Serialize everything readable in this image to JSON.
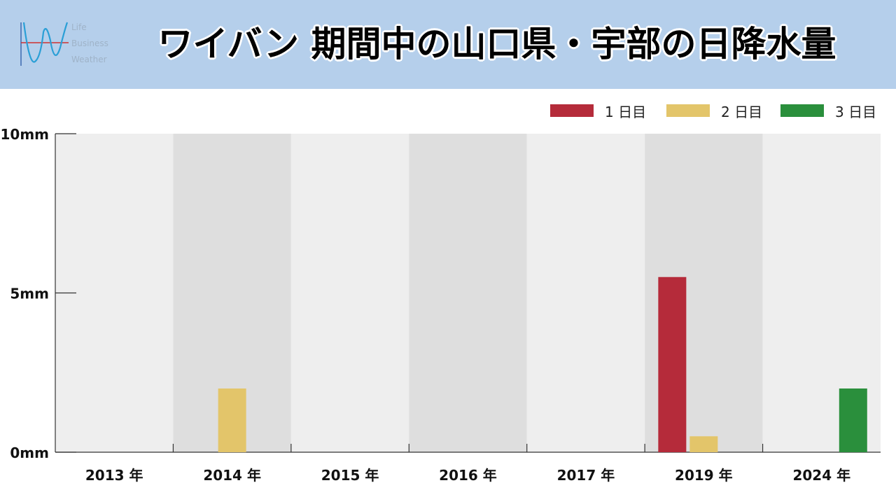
{
  "header": {
    "title": "ワイバン 期間中の山口県・宇部の日降水量",
    "logo_lines": [
      "Life",
      "Business",
      "Weather"
    ],
    "background_color": "#b5cfeb"
  },
  "chart_data": {
    "type": "bar",
    "categories": [
      "2013 年",
      "2014 年",
      "2015 年",
      "2016 年",
      "2017 年",
      "2019 年",
      "2024 年"
    ],
    "series": [
      {
        "name": "1 日目",
        "color": "#b52b3a",
        "values": [
          0,
          0,
          0,
          0,
          0,
          5.5,
          0
        ]
      },
      {
        "name": "2 日目",
        "color": "#e3c56a",
        "values": [
          0,
          2.0,
          0,
          0,
          0,
          0.5,
          0
        ]
      },
      {
        "name": "3 日目",
        "color": "#2a8f3c",
        "values": [
          0,
          0,
          0,
          0,
          0,
          0,
          2.0
        ]
      }
    ],
    "yticks": [
      {
        "value": 0,
        "label": "0mm"
      },
      {
        "value": 5,
        "label": "5mm"
      },
      {
        "value": 10,
        "label": "10mm"
      }
    ],
    "ylim": [
      0,
      10
    ],
    "legend_position": "top-right",
    "band_colors": [
      "#eeeeee",
      "#dedede"
    ]
  }
}
